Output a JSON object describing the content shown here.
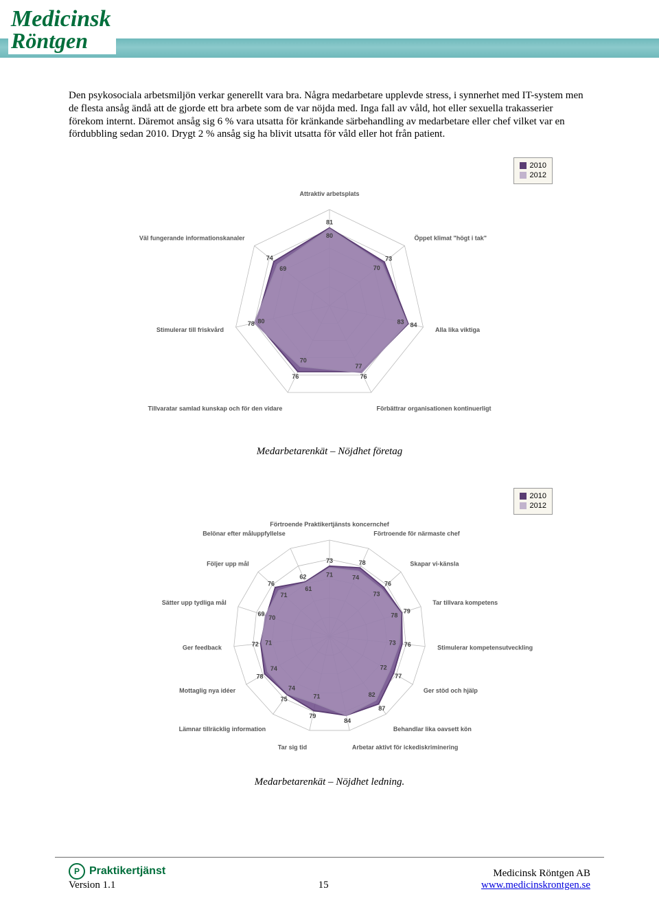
{
  "header": {
    "logo_line1": "Medicinsk",
    "logo_line2": "Röntgen"
  },
  "text": {
    "body": "Den psykosociala arbetsmiljön verkar generellt vara bra. Några medarbetare upplevde stress, i synnerhet med IT-system men de flesta ansåg ändå att de gjorde ett bra arbete som de var nöjda med. Inga fall av våld, hot eller sexuella trakasserier förekom internt. Däremot ansåg sig 6 % vara utsatta för kränkande särbehandling av medarbetare eller chef vilket var en fördubbling sedan 2010. Drygt 2 % ansåg sig ha blivit utsatta för våld eller hot från patient."
  },
  "legend": {
    "items": [
      {
        "label": "2010",
        "color": "#5a3c72"
      },
      {
        "label": "2012",
        "color": "#c2b3cd"
      }
    ]
  },
  "chart1": {
    "type": "radar",
    "caption": "Medarbetarenkät – Nöjdhet företag",
    "labels": [
      "Attraktiv arbetsplats",
      "Öppet klimat \"högt i tak\"",
      "Alla lika viktiga",
      "Förbättrar organisationen kontinuerligt",
      "Tillvaratar samlad kunskap och för den vidare",
      "Stimulerar till friskvård",
      "Väl fungerande informationskanaler"
    ],
    "max": 100,
    "rings": 5,
    "series": [
      {
        "name": "2010",
        "color": "#5a3c72",
        "fill": "#6a4886",
        "fill_opacity": 0.85,
        "values": [
          81,
          73,
          84,
          76,
          76,
          78,
          74
        ]
      },
      {
        "name": "2012",
        "color": "#9b87ad",
        "fill": "#b9a7c9",
        "fill_opacity": 0.55,
        "values": [
          80,
          70,
          83,
          77,
          70,
          80,
          69
        ]
      }
    ]
  },
  "chart2": {
    "type": "radar",
    "caption": "Medarbetarenkät – Nöjdhet ledning.",
    "labels": [
      "Förtroende Praktikertjänsts koncernchef",
      "Förtroende för närmaste chef",
      "Skapar vi-känsla",
      "Tar tillvara kompetens",
      "Stimulerar kompetensutveckling",
      "Ger stöd och hjälp",
      "Behandlar lika oavsett kön",
      "Arbetar aktivt för ickediskriminering",
      "Tar sig tid",
      "Lämnar tillräcklig information",
      "Mottaglig nya idéer",
      "Ger feedback",
      "Sätter upp tydliga mål",
      "Följer upp mål",
      "Belönar efter måluppfyllelse"
    ],
    "max": 100,
    "rings": 5,
    "series": [
      {
        "name": "2010",
        "color": "#5a3c72",
        "fill": "#6a4886",
        "fill_opacity": 0.85,
        "values": [
          73,
          78,
          76,
          79,
          76,
          77,
          87,
          84,
          79,
          75,
          78,
          72,
          69,
          76,
          62
        ]
      },
      {
        "name": "2012",
        "color": "#9b87ad",
        "fill": "#b9a7c9",
        "fill_opacity": 0.55,
        "values": [
          71,
          74,
          73,
          78,
          73,
          72,
          82,
          84,
          71,
          74,
          74,
          71,
          70,
          71,
          61
        ]
      }
    ]
  },
  "footer": {
    "praktikertjanst": "Praktikertjänst",
    "version": "Version 1.1",
    "page": "15",
    "company": "Medicinsk Röntgen AB",
    "url": "www.medicinskrontgen.se"
  }
}
